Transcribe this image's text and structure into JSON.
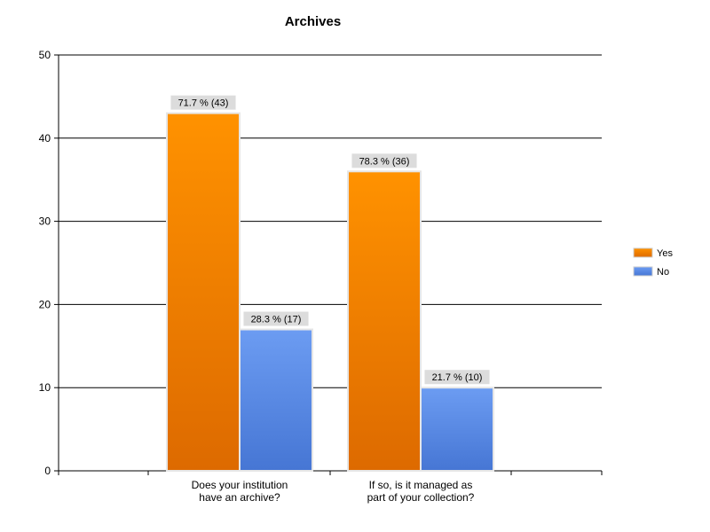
{
  "chart_data": {
    "type": "bar",
    "title": "Archives",
    "xlabel": "",
    "ylabel": "",
    "ylim": [
      0,
      50
    ],
    "yticks": [
      0,
      10,
      20,
      30,
      40,
      50
    ],
    "grid": true,
    "legend_position": "right",
    "categories": [
      [
        "Does your institution",
        "have an archive?"
      ],
      [
        "If so, is it managed as",
        "part of your collection?"
      ]
    ],
    "series": [
      {
        "name": "Yes",
        "color": "#f58a00",
        "values": [
          43,
          36
        ],
        "labels": [
          "71.7 % (43)",
          "78.3 % (36)"
        ]
      },
      {
        "name": "No",
        "color": "#5a8ae6",
        "values": [
          17,
          10
        ],
        "labels": [
          "28.3 % (17)",
          "21.7 % (10)"
        ]
      }
    ]
  }
}
